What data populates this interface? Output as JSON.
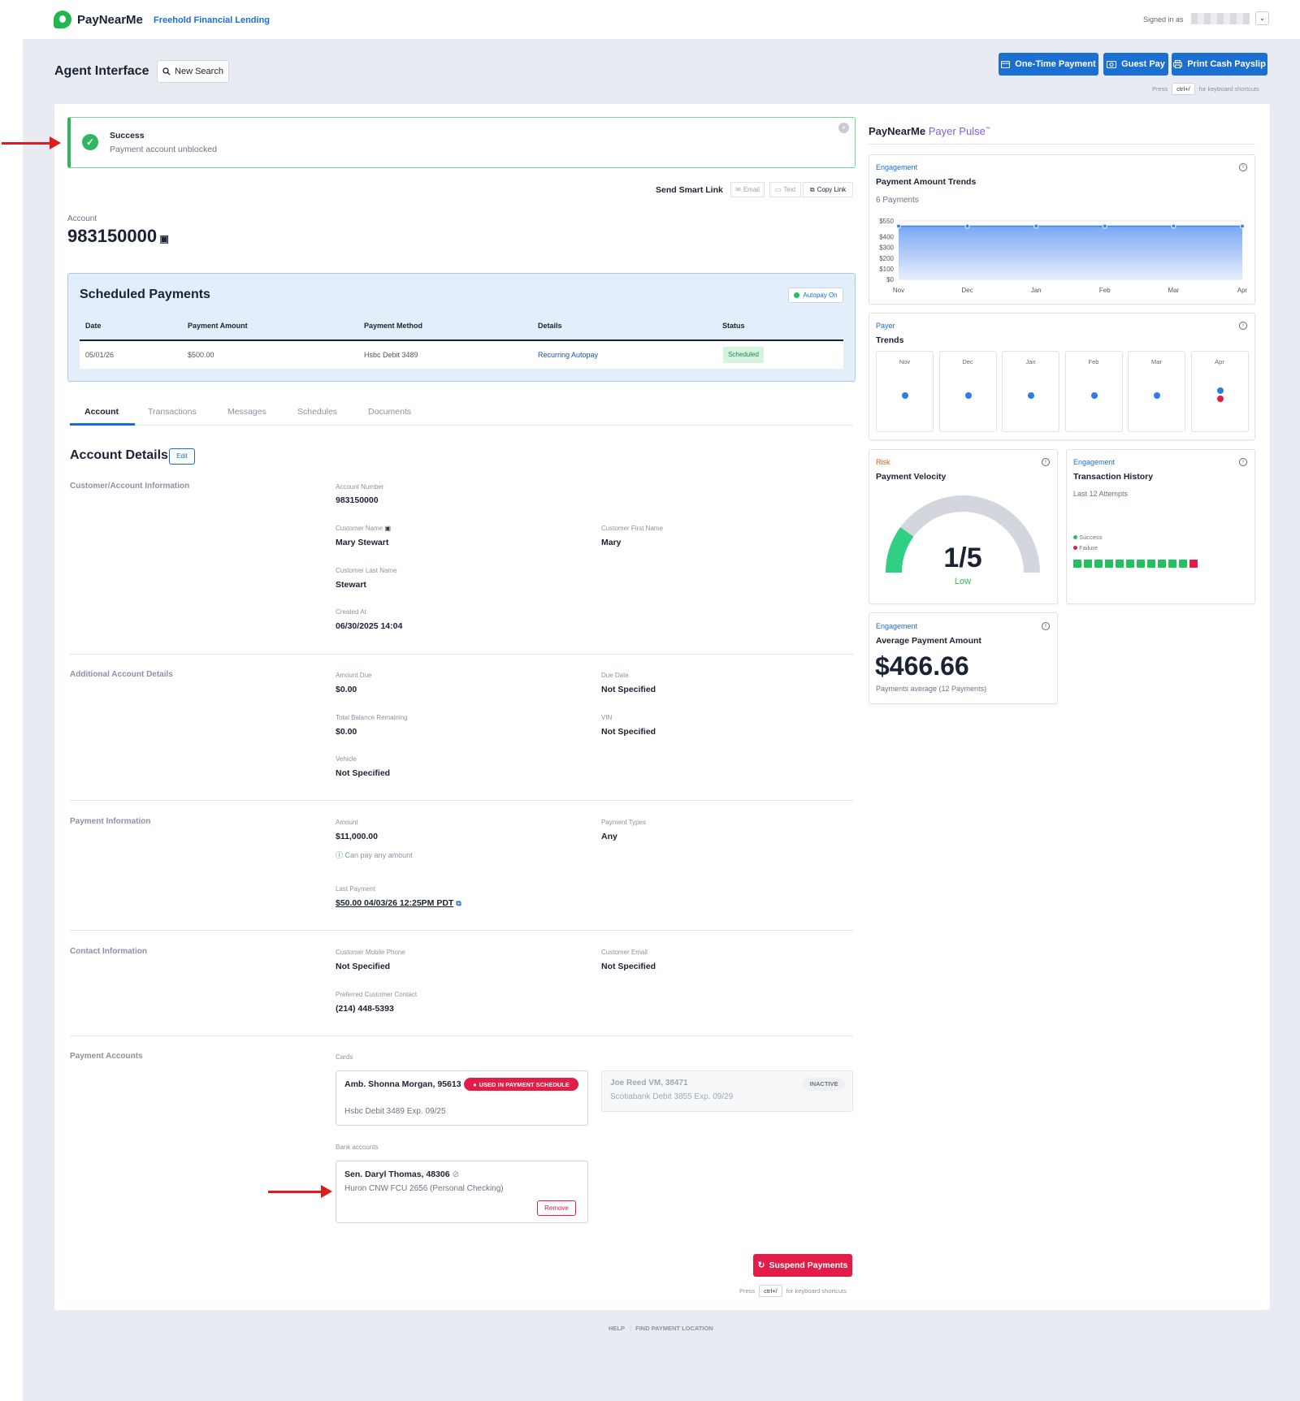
{
  "header": {
    "brand": "PayNearMe",
    "org": "Freehold Financial Lending",
    "signed_in": "Signed in as",
    "page_title": "Agent Interface",
    "new_search": "New Search",
    "buttons": {
      "one_time": "One-Time Payment",
      "guest_pay": "Guest Pay",
      "print": "Print Cash Payslip"
    },
    "hint_press": "Press",
    "hint_key": "ctrl+/",
    "hint_text": "for keyboard shortcuts"
  },
  "alert": {
    "title": "Success",
    "message": "Payment account unblocked"
  },
  "smart_link": {
    "label": "Send Smart Link",
    "email": "Email",
    "text": "Text",
    "copy": "Copy Link"
  },
  "account": {
    "label": "Account",
    "number": "983150000"
  },
  "scheduled": {
    "title": "Scheduled Payments",
    "autopay": "Autopay On",
    "columns": [
      "Date",
      "Payment Amount",
      "Payment Method",
      "Details",
      "Status"
    ],
    "rows": [
      {
        "date": "05/01/26",
        "amount": "$500.00",
        "method": "Hsbc Debit 3489",
        "details": "Recurring Autopay",
        "status": "Scheduled"
      }
    ]
  },
  "tabs": [
    "Account",
    "Transactions",
    "Messages",
    "Schedules",
    "Documents"
  ],
  "details": {
    "title": "Account Details",
    "edit": "Edit",
    "groups": {
      "customer": "Customer/Account Information",
      "additional": "Additional Account Details",
      "payment": "Payment Information",
      "contact": "Contact Information",
      "accounts": "Payment Accounts"
    },
    "fields": {
      "account_number": {
        "label": "Account Number",
        "value": "983150000"
      },
      "customer_name": {
        "label": "Customer Name",
        "value": "Mary Stewart"
      },
      "first_name": {
        "label": "Customer First Name",
        "value": "Mary"
      },
      "last_name": {
        "label": "Customer Last Name",
        "value": "Stewart"
      },
      "created_at": {
        "label": "Created At",
        "value": "06/30/2025 14:04"
      },
      "amount_due": {
        "label": "Amount Due",
        "value": "$0.00"
      },
      "due_date": {
        "label": "Due Date",
        "value": "Not Specified"
      },
      "balance": {
        "label": "Total Balance Remaining",
        "value": "$0.00"
      },
      "vin": {
        "label": "VIN",
        "value": "Not Specified"
      },
      "vehicle": {
        "label": "Vehicle",
        "value": "Not Specified"
      },
      "amount": {
        "label": "Amount",
        "value": "$11,000.00",
        "note": "Can pay any amount"
      },
      "payment_types": {
        "label": "Payment Types",
        "value": "Any"
      },
      "last_payment": {
        "label": "Last Payment",
        "value": "$50.00 04/03/26 12:25PM PDT"
      },
      "mobile": {
        "label": "Customer Mobile Phone",
        "value": "Not Specified"
      },
      "email": {
        "label": "Customer Email",
        "value": "Not Specified"
      },
      "preferred": {
        "label": "Preferred Customer Contact",
        "value": "(214) 448-5393"
      }
    },
    "cards_label": "Cards",
    "cards": [
      {
        "name": "Amb. Shonna Morgan, 95613",
        "detail": "Hsbc Debit 3489 Exp. 09/25",
        "badge": "USED IN PAYMENT SCHEDULE"
      },
      {
        "name": "Joe Reed VM, 38471",
        "detail": "Scotiabank Debit 3855 Exp. 09/29",
        "badge": "INACTIVE"
      }
    ],
    "banks_label": "Bank accounts",
    "banks": [
      {
        "name": "Sen. Daryl Thomas, 48306",
        "detail": "Huron CNW FCU 2656 (Personal Checking)",
        "remove": "Remove"
      }
    ],
    "suspend": "Suspend Payments"
  },
  "footer": {
    "help": "HELP",
    "find": "FIND PAYMENT LOCATION"
  },
  "pulse": {
    "title_a": "PayNearMe",
    "title_b": "Payer Pulse",
    "tm": "™",
    "trends": {
      "tag": "Engagement",
      "title": "Payment Amount Trends",
      "subtitle": "6 Payments",
      "yticks": [
        "$550",
        "$400",
        "$300",
        "$200",
        "$100",
        "$0"
      ],
      "months": [
        "Nov",
        "Dec",
        "Jan",
        "Feb",
        "Mar",
        "Apr"
      ]
    },
    "payer": {
      "tag": "Payer",
      "title": "Trends",
      "months": [
        "Nov",
        "Dec",
        "Jan",
        "Feb",
        "Mar",
        "Apr"
      ]
    },
    "velocity": {
      "tag": "Risk",
      "title": "Payment Velocity",
      "value": "1/5",
      "level": "Low",
      "fraction": 0.2
    },
    "history": {
      "tag": "Engagement",
      "title": "Transaction History",
      "subtitle": "Last 12 Attempts",
      "success": "Success",
      "failure": "Failure",
      "attempts": [
        "s",
        "s",
        "s",
        "s",
        "s",
        "s",
        "s",
        "s",
        "s",
        "s",
        "s",
        "f"
      ]
    },
    "average": {
      "tag": "Engagement",
      "title": "Average Payment Amount",
      "value": "$466.66",
      "note": "Payments average (12 Payments)"
    }
  },
  "chart_data": {
    "type": "area",
    "title": "Payment Amount Trends",
    "categories": [
      "Nov",
      "Dec",
      "Jan",
      "Feb",
      "Mar",
      "Apr"
    ],
    "series": [
      {
        "values": [
          500,
          500,
          500,
          500,
          500,
          500
        ]
      }
    ],
    "yticks": [
      "$550",
      "$400",
      "$300",
      "$200",
      "$100",
      "$0"
    ],
    "ylim": [
      0,
      550
    ]
  },
  "colors": {
    "brand": "#1b6fd1",
    "success": "#2fb65f",
    "danger": "#e11d48",
    "risk": "#e8590c",
    "pulse": "#8b5cf6"
  }
}
